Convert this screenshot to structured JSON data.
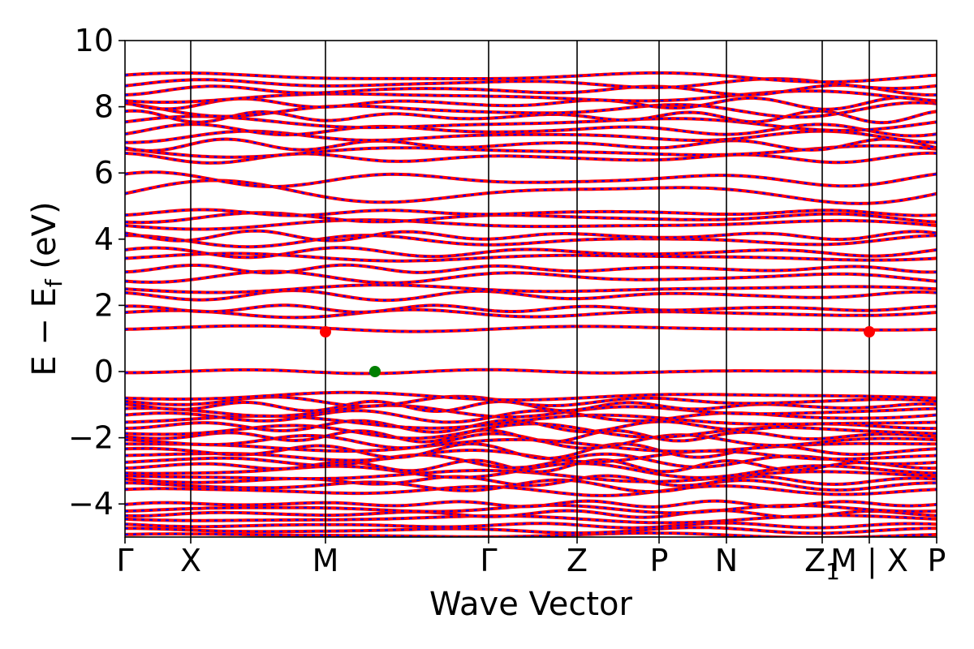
{
  "chart_data": {
    "type": "line",
    "title": "",
    "xlabel": "Wave Vector",
    "ylabel": "E − E",
    "ylabel_sub": "f",
    "ylabel_suffix": " (eV)",
    "ylim": [
      -5,
      10
    ],
    "yticks": [
      -4,
      -2,
      0,
      2,
      4,
      6,
      8,
      10
    ],
    "ytick_labels": [
      "−4",
      "−2",
      "0",
      "2",
      "4",
      "6",
      "8",
      "10"
    ],
    "grid": false,
    "xlim": [
      0,
      1
    ],
    "kpoints": [
      {
        "label": "Γ",
        "x": 0.0
      },
      {
        "label": "X",
        "x": 0.081
      },
      {
        "label": "M",
        "x": 0.247
      },
      {
        "label": "Γ",
        "x": 0.448
      },
      {
        "label": "Z",
        "x": 0.557
      },
      {
        "label": "P",
        "x": 0.658
      },
      {
        "label": "N",
        "x": 0.741
      },
      {
        "label": "Z",
        "x": 0.859
      },
      {
        "label": "M | X",
        "x": 0.917
      },
      {
        "label": "P",
        "x": 1.0
      }
    ],
    "kpoint_sub_index": 7,
    "kpoint_sub": "1",
    "series_colors": {
      "spin_up": "#ff0000",
      "spin_down": "#0000ff"
    },
    "bands": [
      {
        "base": -4.95,
        "amp": 0.05,
        "f": 2
      },
      {
        "base": -4.8,
        "amp": 0.06,
        "f": 3
      },
      {
        "base": -4.65,
        "amp": 0.05,
        "f": 4
      },
      {
        "base": -4.45,
        "amp": 0.08,
        "f": 2
      },
      {
        "base": -4.3,
        "amp": 0.07,
        "f": 5
      },
      {
        "base": -4.15,
        "amp": 0.08,
        "f": 3
      },
      {
        "base": -4.0,
        "amp": 0.06,
        "f": 6
      },
      {
        "base": -3.6,
        "amp": 0.1,
        "f": 3
      },
      {
        "base": -3.45,
        "amp": 0.12,
        "f": 4
      },
      {
        "base": -3.3,
        "amp": 0.1,
        "f": 5
      },
      {
        "base": -3.15,
        "amp": 0.12,
        "f": 2
      },
      {
        "base": -3.0,
        "amp": 0.15,
        "f": 3
      },
      {
        "base": -2.85,
        "amp": 0.12,
        "f": 6
      },
      {
        "base": -2.7,
        "amp": 0.14,
        "f": 4
      },
      {
        "base": -2.55,
        "amp": 0.12,
        "f": 3
      },
      {
        "base": -2.4,
        "amp": 0.15,
        "f": 5
      },
      {
        "base": -2.25,
        "amp": 0.13,
        "f": 2
      },
      {
        "base": -2.1,
        "amp": 0.15,
        "f": 4
      },
      {
        "base": -1.95,
        "amp": 0.12,
        "f": 6
      },
      {
        "base": -1.8,
        "amp": 0.15,
        "f": 3
      },
      {
        "base": -1.65,
        "amp": 0.12,
        "f": 5
      },
      {
        "base": -1.5,
        "amp": 0.14,
        "f": 2
      },
      {
        "base": -1.35,
        "amp": 0.12,
        "f": 4
      },
      {
        "base": -1.2,
        "amp": 0.12,
        "f": 3
      },
      {
        "base": -1.05,
        "amp": 0.1,
        "f": 6
      },
      {
        "base": -0.9,
        "amp": 0.1,
        "f": 4
      },
      {
        "base": -0.75,
        "amp": 0.08,
        "f": 2
      },
      {
        "base": 0.0,
        "amp": 0.04,
        "f": 3
      },
      {
        "base": 1.3,
        "amp": 0.06,
        "f": 2
      },
      {
        "base": 1.75,
        "amp": 0.08,
        "f": 3
      },
      {
        "base": 1.9,
        "amp": 0.07,
        "f": 5
      },
      {
        "base": 2.3,
        "amp": 0.1,
        "f": 4
      },
      {
        "base": 2.5,
        "amp": 0.08,
        "f": 2
      },
      {
        "base": 2.85,
        "amp": 0.12,
        "f": 3
      },
      {
        "base": 3.1,
        "amp": 0.08,
        "f": 5
      },
      {
        "base": 3.45,
        "amp": 0.08,
        "f": 2
      },
      {
        "base": 3.6,
        "amp": 0.1,
        "f": 4
      },
      {
        "base": 3.95,
        "amp": 0.12,
        "f": 3
      },
      {
        "base": 4.1,
        "amp": 0.1,
        "f": 5
      },
      {
        "base": 4.45,
        "amp": 0.1,
        "f": 2
      },
      {
        "base": 4.65,
        "amp": 0.1,
        "f": 3
      },
      {
        "base": 4.8,
        "amp": 0.06,
        "f": 4
      },
      {
        "base": 5.4,
        "amp": 0.25,
        "f": 2
      },
      {
        "base": 5.8,
        "amp": 0.15,
        "f": 3
      },
      {
        "base": 6.45,
        "amp": 0.1,
        "f": 4
      },
      {
        "base": 6.65,
        "amp": 0.12,
        "f": 2
      },
      {
        "base": 6.85,
        "amp": 0.12,
        "f": 5
      },
      {
        "base": 7.1,
        "amp": 0.12,
        "f": 3
      },
      {
        "base": 7.3,
        "amp": 0.12,
        "f": 4
      },
      {
        "base": 7.5,
        "amp": 0.15,
        "f": 2
      },
      {
        "base": 7.7,
        "amp": 0.12,
        "f": 6
      },
      {
        "base": 7.9,
        "amp": 0.15,
        "f": 3
      },
      {
        "base": 8.1,
        "amp": 0.12,
        "f": 5
      },
      {
        "base": 8.3,
        "amp": 0.12,
        "f": 2
      },
      {
        "base": 8.5,
        "amp": 0.1,
        "f": 4
      },
      {
        "base": 8.7,
        "amp": 0.1,
        "f": 3
      },
      {
        "base": 8.9,
        "amp": 0.1,
        "f": 2
      }
    ],
    "markers": [
      {
        "name": "cbm-marker-1",
        "x": 0.247,
        "y": 1.2,
        "color": "#ff0000"
      },
      {
        "name": "cbm-marker-2",
        "x": 0.917,
        "y": 1.2,
        "color": "#ff0000"
      },
      {
        "name": "vbm-marker",
        "x": 0.308,
        "y": 0.0,
        "color": "#008000"
      }
    ]
  }
}
